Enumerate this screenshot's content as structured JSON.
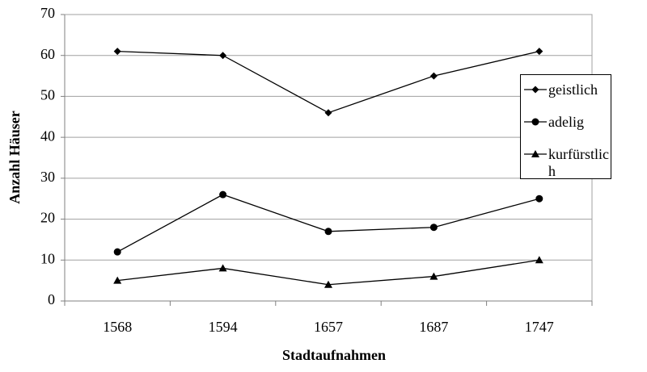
{
  "chart_data": {
    "type": "line",
    "x_label": "Stadtaufnahmen",
    "y_label": "Anzahl Häuser",
    "categories": [
      "1568",
      "1594",
      "1657",
      "1687",
      "1747"
    ],
    "series": [
      {
        "name": "geistlich",
        "color": "#000000",
        "marker": "diamond",
        "values": [
          61,
          60,
          46,
          55,
          61
        ]
      },
      {
        "name": "adelig",
        "color": "#000000",
        "marker": "circle",
        "values": [
          12,
          26,
          17,
          18,
          25
        ]
      },
      {
        "name": "kurfürstlich",
        "color": "#000000",
        "marker": "triangle",
        "values": [
          5,
          8,
          4,
          6,
          10
        ]
      }
    ],
    "ylim": [
      0,
      70
    ],
    "yticks": [
      0,
      10,
      20,
      30,
      40,
      50,
      60,
      70
    ],
    "grid": true
  }
}
